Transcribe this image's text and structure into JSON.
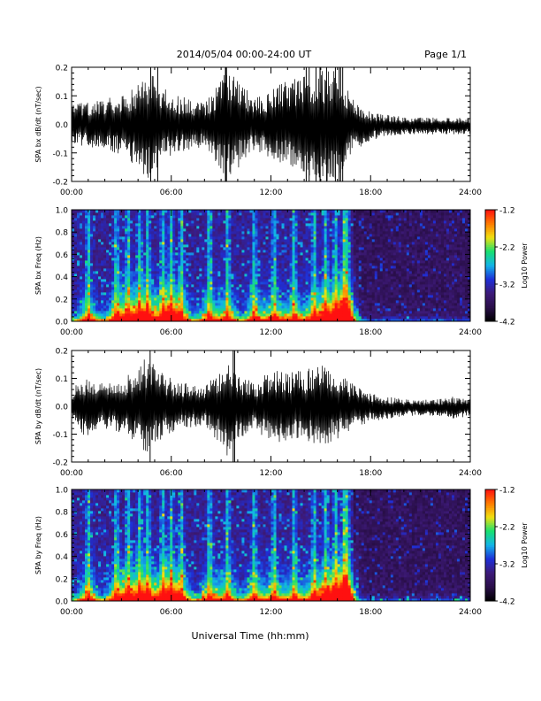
{
  "header": {
    "title": "2014/05/04  00:00-24:00 UT",
    "page": "Page 1/1"
  },
  "colors": {
    "trace": "#000000",
    "colormap": [
      "#000000",
      "#2a0f4a",
      "#3d1a78",
      "#1e2fd8",
      "#12b4e8",
      "#18e070",
      "#f0e010",
      "#ff7a00",
      "#ff1010"
    ]
  },
  "chart_data": [
    {
      "type": "line",
      "ylabel": "SPA bx dB/dt (nT/sec)",
      "xlim": [
        "00:00",
        "24:00"
      ],
      "ylim": [
        -0.2,
        0.2
      ],
      "xticks": [
        "00:00",
        "06:00",
        "12:00",
        "18:00",
        "24:00"
      ],
      "yticks": [
        "-0.2",
        "-0.1",
        "0.0",
        "0.1",
        "0.2"
      ],
      "activity_envelope": {
        "x": [
          0,
          1,
          2,
          3,
          4,
          4.6,
          5,
          6,
          7,
          8,
          9,
          9.5,
          10,
          11,
          12,
          13,
          14,
          15,
          16,
          17,
          18,
          19,
          20,
          21,
          22,
          23,
          24
        ],
        "y": [
          0.07,
          0.08,
          0.09,
          0.11,
          0.15,
          0.2,
          0.16,
          0.11,
          0.09,
          0.08,
          0.16,
          0.2,
          0.16,
          0.09,
          0.12,
          0.16,
          0.17,
          0.2,
          0.2,
          0.09,
          0.05,
          0.04,
          0.03,
          0.03,
          0.03,
          0.03,
          0.03
        ]
      }
    },
    {
      "type": "heatmap",
      "ylabel": "SPA bx Freq (Hz)",
      "colorbar_label": "Log10 Power",
      "xlim": [
        "00:00",
        "24:00"
      ],
      "ylim": [
        0.0,
        1.0
      ],
      "clim": [
        -4.2,
        -1.2
      ],
      "xticks": [
        "00:00",
        "06:00",
        "12:00",
        "18:00",
        "24:00"
      ],
      "yticks": [
        "0.0",
        "0.2",
        "0.4",
        "0.6",
        "0.8",
        "1.0"
      ],
      "cticks": [
        "-1.2",
        "-2.2",
        "-3.2",
        "-4.2"
      ],
      "bursts_hours": [
        1.0,
        2.7,
        3.4,
        4.1,
        4.6,
        5.5,
        6.0,
        6.6,
        8.3,
        9.4,
        11.0,
        12.2,
        13.4,
        14.6,
        15.3,
        15.9,
        16.4,
        16.6
      ]
    },
    {
      "type": "line",
      "ylabel": "SPA by dB/dt (nT/sec)",
      "xlim": [
        "00:00",
        "24:00"
      ],
      "ylim": [
        -0.2,
        0.2
      ],
      "xticks": [
        "00:00",
        "06:00",
        "12:00",
        "18:00",
        "24:00"
      ],
      "yticks": [
        "-0.2",
        "-0.1",
        "0.0",
        "0.1",
        "0.2"
      ],
      "activity_envelope": {
        "x": [
          0,
          1,
          2,
          3,
          4,
          4.6,
          5,
          6,
          7,
          8,
          9,
          9.5,
          10,
          11,
          12,
          13,
          14,
          15,
          16,
          17,
          18,
          19,
          20,
          21,
          22,
          23,
          24
        ],
        "y": [
          0.06,
          0.12,
          0.08,
          0.1,
          0.13,
          0.2,
          0.14,
          0.1,
          0.08,
          0.07,
          0.14,
          0.2,
          0.13,
          0.08,
          0.14,
          0.12,
          0.13,
          0.15,
          0.12,
          0.08,
          0.05,
          0.04,
          0.03,
          0.03,
          0.03,
          0.04,
          0.03
        ]
      }
    },
    {
      "type": "heatmap",
      "ylabel": "SPA by Freq (Hz)",
      "colorbar_label": "Log10 Power",
      "xlim": [
        "00:00",
        "24:00"
      ],
      "ylim": [
        0.0,
        1.0
      ],
      "clim": [
        -4.2,
        -1.2
      ],
      "xticks": [
        "00:00",
        "06:00",
        "12:00",
        "18:00",
        "24:00"
      ],
      "yticks": [
        "0.0",
        "0.2",
        "0.4",
        "0.6",
        "0.8",
        "1.0"
      ],
      "cticks": [
        "-1.2",
        "-2.2",
        "-3.2",
        "-4.2"
      ],
      "bursts_hours": [
        1.0,
        2.7,
        3.4,
        4.1,
        4.6,
        5.5,
        6.0,
        6.6,
        8.3,
        9.4,
        11.0,
        12.2,
        13.4,
        14.6,
        15.3,
        15.9,
        16.4,
        16.6
      ]
    }
  ],
  "xlabel": "Universal Time (hh:mm)"
}
